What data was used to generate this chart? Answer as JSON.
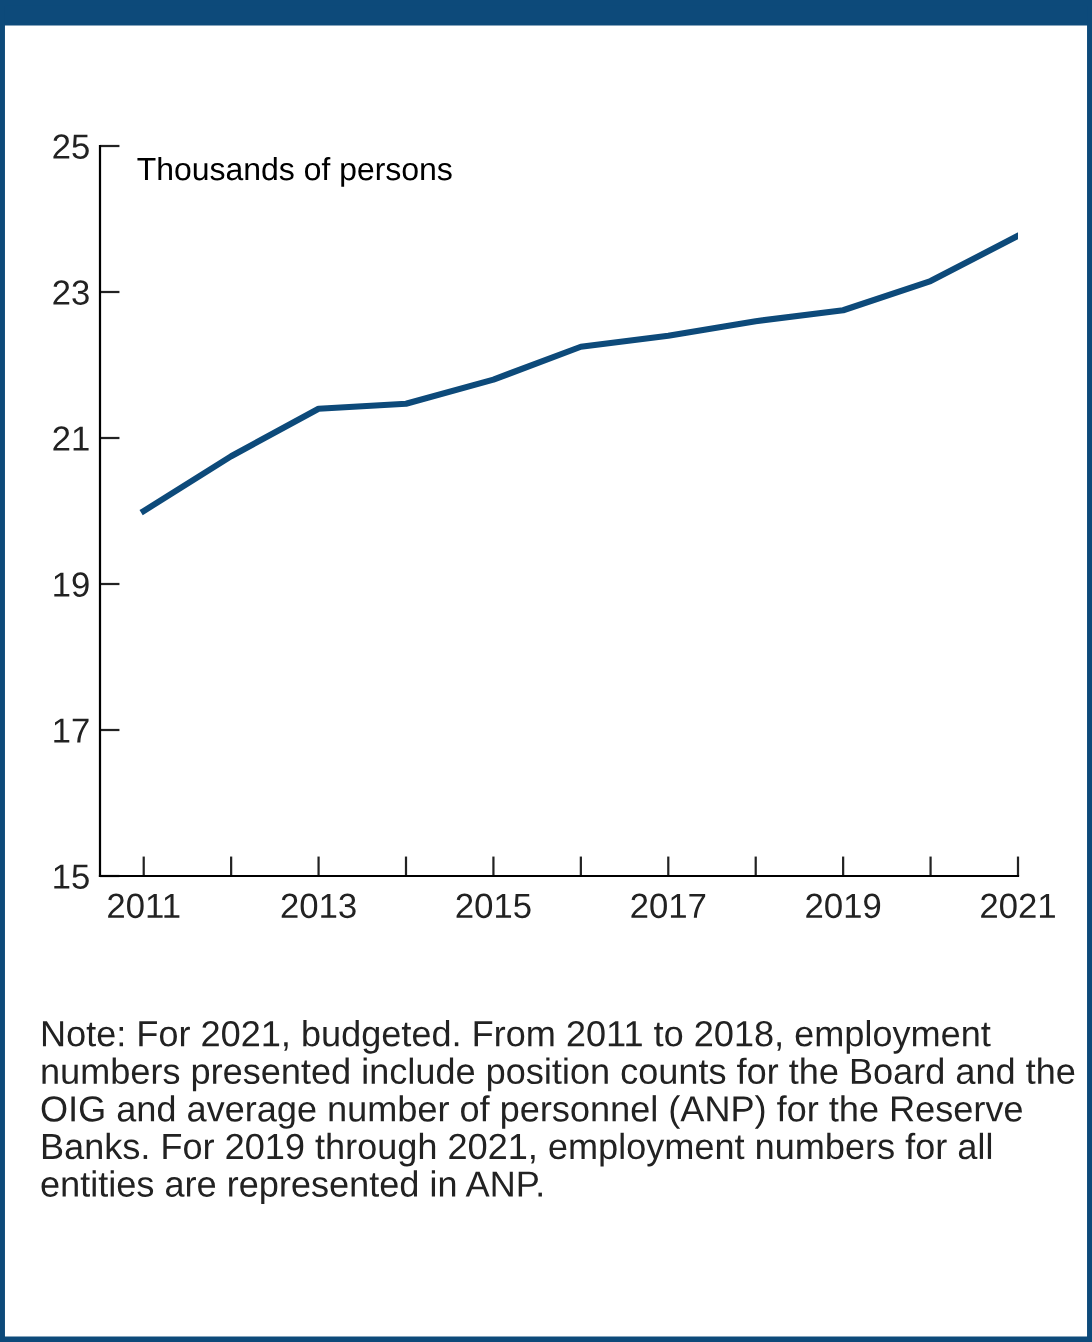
{
  "chart_data": {
    "type": "line",
    "ylabel": "Thousands of persons",
    "x": [
      2011,
      2012,
      2013,
      2014,
      2015,
      2016,
      2017,
      2018,
      2019,
      2020,
      2021
    ],
    "series": [
      {
        "color": "#0d4a7a",
        "values": [
          20.0,
          20.75,
          21.4,
          21.47,
          21.8,
          22.25,
          22.4,
          22.6,
          22.75,
          23.15,
          23.77
        ]
      }
    ],
    "xlim": [
      2010.5,
      2021
    ],
    "xticks": [
      2011,
      {
        "value": 2012,
        "label": null
      },
      2013,
      {
        "value": 2014,
        "label": null
      },
      2015,
      {
        "value": 2016,
        "label": null
      },
      2017,
      {
        "value": 2018,
        "label": null
      },
      2019,
      {
        "value": 2020,
        "label": null
      },
      2021
    ],
    "ylim": [
      15,
      25
    ],
    "yticks": [
      15,
      17,
      19,
      21,
      23,
      25
    ],
    "grid": false,
    "legend": false,
    "marker": "none",
    "line_style": "solid",
    "annotations": [
      "Note: For 2021, budgeted. From 2011 to 2018, employment numbers presented include position counts for the Board and the OIG and average number of personnel (ANP) for the Reserve Banks. For 2019 through 2021, employment numbers for all entities are represented in ANP."
    ]
  }
}
